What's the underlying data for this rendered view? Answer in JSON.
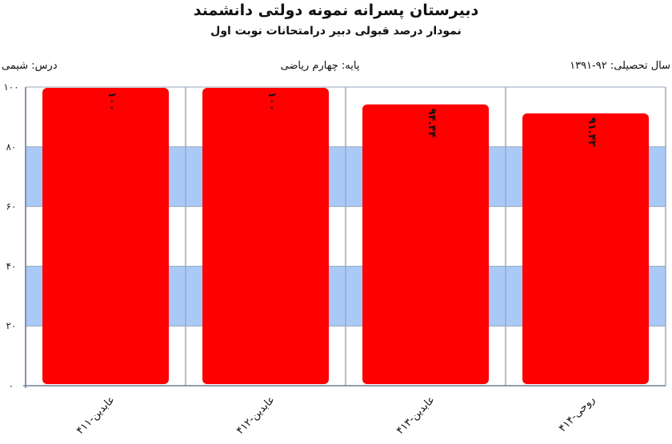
{
  "header": {
    "title": "دبیرستان پسرانه نمونه دولتی دانشمند",
    "subtitle": "نمودار درصد قبولی دبیر درامتحانات نوبت اول"
  },
  "meta": {
    "year": "سال تحصیلی: ۹۲-۱۳۹۱",
    "grade": "پایه: چهارم ریاضی",
    "subject": "درس: شیمی"
  },
  "colors": {
    "bar": "#ff0000",
    "band": "#a9c9f7",
    "grid": "#9aa9bd"
  },
  "chart_data": {
    "type": "bar",
    "title": "نمودار درصد قبولی دبیر درامتحانات نوبت اول",
    "categories": [
      "عابدین-۴۱۱",
      "عابدین-۴۱۲",
      "عابدین-۴۱۳",
      "روحی-۴۱۴"
    ],
    "values": [
      100,
      100,
      94.44,
      91.43
    ],
    "value_labels": [
      "۱۰۰",
      "۱۰۰",
      "۹۴.۴۴",
      "۹۱.۴۳"
    ],
    "ylim": [
      0,
      100
    ],
    "yticks": [
      0,
      20,
      40,
      60,
      80,
      100
    ],
    "ytick_labels": [
      "۰",
      "۲۰",
      "۴۰",
      "۶۰",
      "۸۰",
      "۱۰۰"
    ],
    "grid": true,
    "legend": "none"
  }
}
